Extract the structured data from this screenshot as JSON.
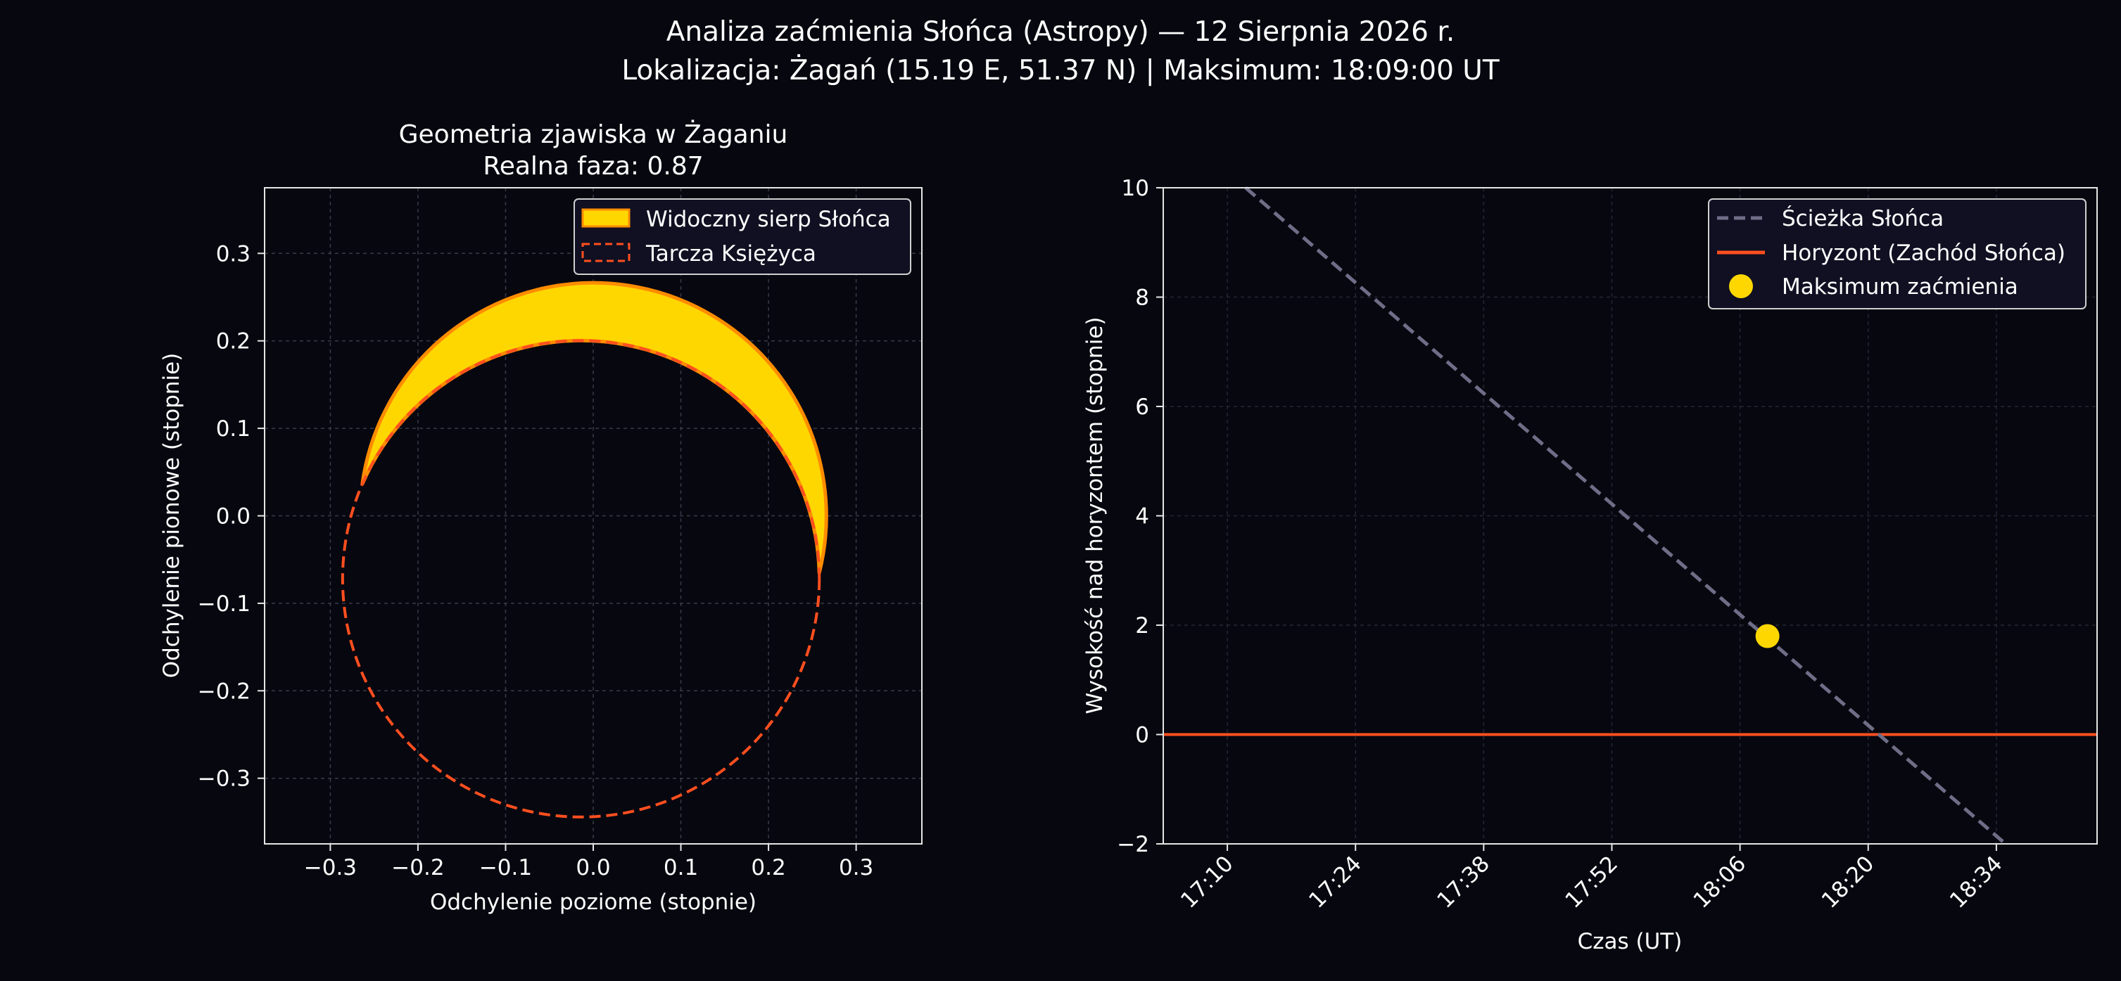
{
  "figure": {
    "title_line1": "Analiza zaćmienia Słońca (Astropy) — 12 Sierpnia 2026 r.",
    "title_line2": "Lokalizacja: Żagań (15.19 E, 51.37 N) | Maksimum: 18:09:00 UT",
    "background": "#07070f"
  },
  "chart_data": [
    {
      "type": "scatter",
      "title": "Geometria zjawiska w Żaganiu",
      "subtitle": "Realna faza: 0.87",
      "xlabel": "Odchylenie poziome (stopnie)",
      "ylabel": "Odchylenie pionowe (stopnie)",
      "xlim": [
        -0.375,
        0.375
      ],
      "ylim": [
        -0.375,
        0.375
      ],
      "xticks": [
        -0.3,
        -0.2,
        -0.1,
        0.0,
        0.1,
        0.2,
        0.3
      ],
      "xtick_labels": [
        "−0.3",
        "−0.2",
        "−0.1",
        "0.0",
        "0.1",
        "0.2",
        "0.3"
      ],
      "yticks": [
        -0.3,
        -0.2,
        -0.1,
        0.0,
        0.1,
        0.2,
        0.3
      ],
      "ytick_labels": [
        "−0.3",
        "−0.2",
        "−0.1",
        "0.0",
        "0.1",
        "0.2",
        "0.3"
      ],
      "grid": true,
      "legend_position": "top-right",
      "sun": {
        "center": [
          0.0,
          0.0
        ],
        "radius": 0.266
      },
      "moon": {
        "center": [
          -0.014,
          -0.072
        ],
        "radius": 0.272
      },
      "series": [
        {
          "name": "Widoczny sierp Słońca",
          "kind": "filled-crescent",
          "color": "#ffd700",
          "edge_color": "#ff8c00"
        },
        {
          "name": "Tarcza Księżyca",
          "kind": "dashed-circle",
          "color": "#ff4f1f"
        }
      ]
    },
    {
      "type": "line",
      "xlabel": "Czas (UT)",
      "ylabel": "Wysokość nad horyzontem (stopnie)",
      "xlim": [
        "17:03",
        "18:45"
      ],
      "ylim": [
        -2,
        10
      ],
      "xticks": [
        "17:10",
        "17:24",
        "17:38",
        "17:52",
        "18:06",
        "18:20",
        "18:34"
      ],
      "yticks": [
        -2,
        0,
        2,
        4,
        6,
        8,
        10
      ],
      "grid": true,
      "legend_position": "top-right",
      "series": [
        {
          "name": "Ścieżka Słońca",
          "style": "dashed",
          "color": "#6e6e88",
          "x": [
            "17:12",
            "18:35"
          ],
          "y": [
            10.0,
            -2.0
          ]
        },
        {
          "name": "Horyzont (Zachód Słońca)",
          "style": "solid",
          "color": "#ff4f1f",
          "x": [
            "17:03",
            "18:45"
          ],
          "y": [
            0,
            0
          ]
        },
        {
          "name": "Maksimum zaćmienia",
          "style": "marker",
          "color": "#ffd700",
          "x": [
            "18:09"
          ],
          "y": [
            1.8
          ]
        }
      ]
    }
  ]
}
